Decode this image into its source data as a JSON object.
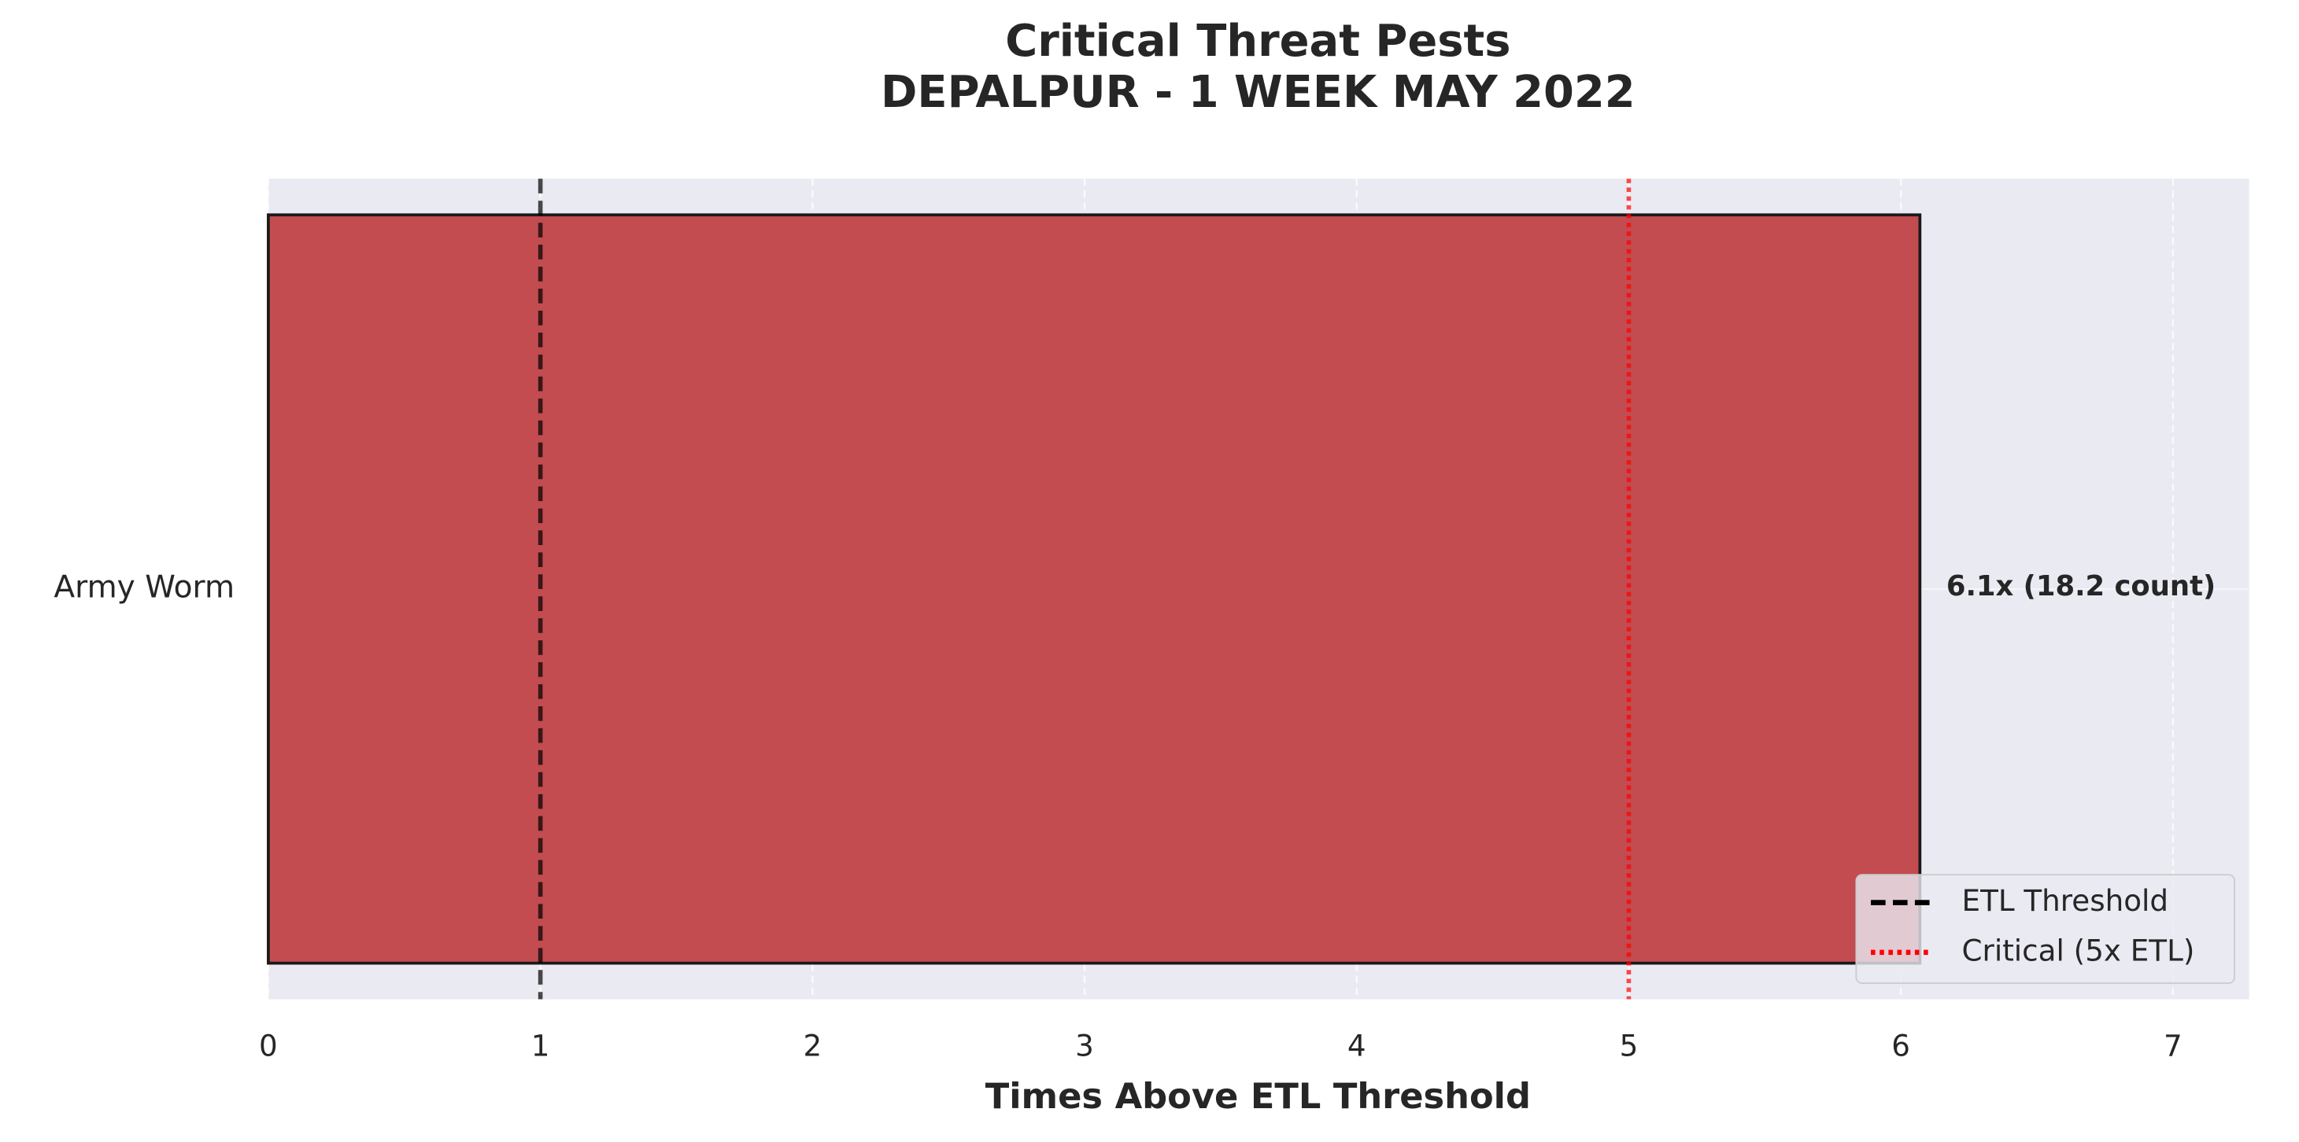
{
  "chart_data": {
    "type": "barh",
    "title": [
      "Critical Threat Pests",
      "DEPALPUR - 1 WEEK MAY 2022"
    ],
    "x_label": "Times Above ETL Threshold",
    "categories": [
      "Army Worm"
    ],
    "values": [
      6.07
    ],
    "value_labels": [
      "6.1x  (18.2 count)"
    ],
    "color": "#c0464a",
    "edge_color": "#1a1a1a",
    "xlim": [
      0,
      7.28
    ],
    "xticks": [
      0,
      1,
      2,
      3,
      4,
      5,
      6,
      7
    ],
    "grid": true,
    "reference_lines": [
      {
        "name": "ETL Threshold",
        "value": 1,
        "color": "#000000",
        "style": "dashed"
      },
      {
        "name": "Critical (5x ETL)",
        "value": 5,
        "color": "#ff0000",
        "style": "dotted"
      }
    ],
    "legend": "lower right"
  }
}
